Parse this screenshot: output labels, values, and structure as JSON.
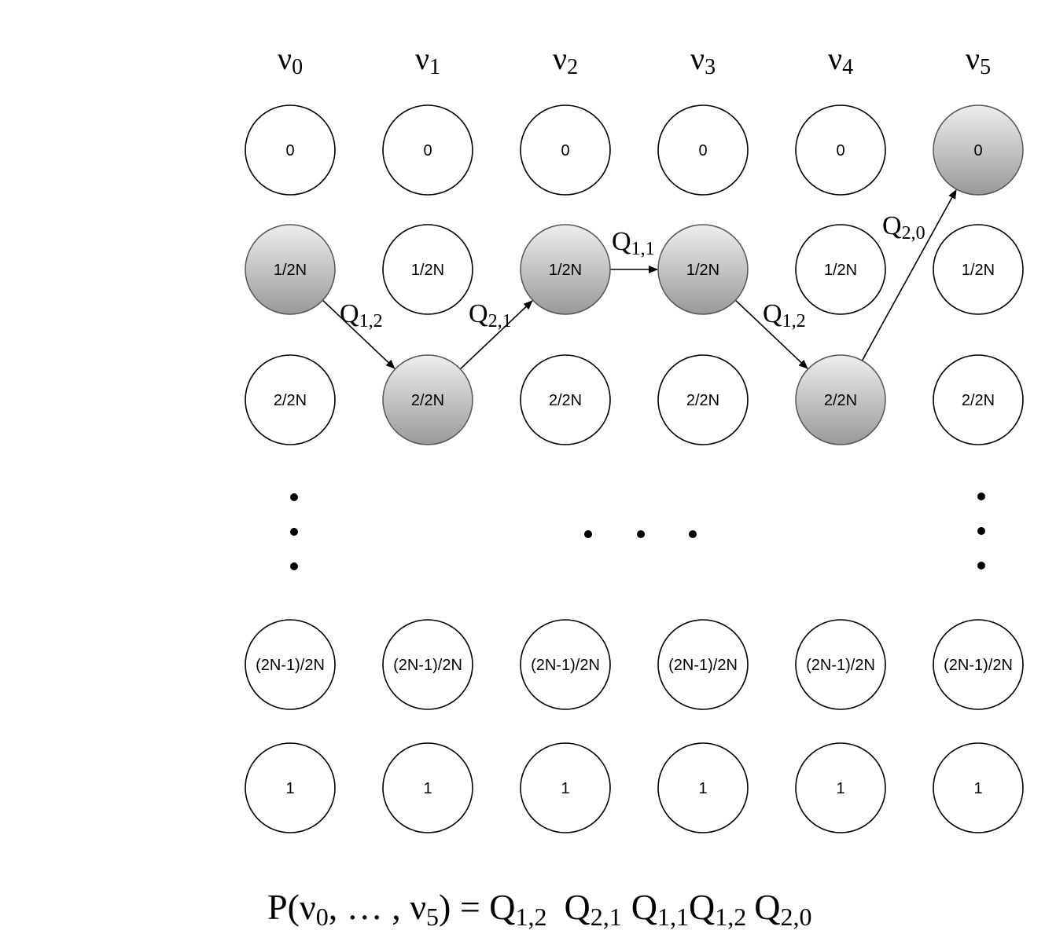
{
  "columns": [
    {
      "base": "ν",
      "sub": "0"
    },
    {
      "base": "ν",
      "sub": "1"
    },
    {
      "base": "ν",
      "sub": "2"
    },
    {
      "base": "ν",
      "sub": "3"
    },
    {
      "base": "ν",
      "sub": "4"
    },
    {
      "base": "ν",
      "sub": "5"
    }
  ],
  "rows_upper": [
    "0",
    "1/2N",
    "2/2N"
  ],
  "rows_lower": [
    "(2N-1)/2N",
    "1"
  ],
  "path_states": [
    1,
    2,
    1,
    1,
    2,
    0
  ],
  "transitions": [
    {
      "base": "Q",
      "sub": "1,2"
    },
    {
      "base": "Q",
      "sub": "2,1"
    },
    {
      "base": "Q",
      "sub": "1,1"
    },
    {
      "base": "Q",
      "sub": "1,2"
    },
    {
      "base": "Q",
      "sub": "2,0"
    }
  ],
  "formula": {
    "lhs_prefix": "P(",
    "lhs_var": "ν",
    "lhs_sub_start": "0",
    "lhs_mid": ", … , ",
    "lhs_sub_end": "5",
    "lhs_suffix": ") = ",
    "terms": [
      {
        "base": "Q",
        "sub": "1,2"
      },
      {
        "base": "Q",
        "sub": "2,1"
      },
      {
        "base": "Q",
        "sub": "1,1"
      },
      {
        "base": "Q",
        "sub": "1,2"
      },
      {
        "base": "Q",
        "sub": "2,0"
      }
    ]
  },
  "colors": {
    "node_fill": "#ffffff",
    "node_stroke": "#000000",
    "path_fill_top": "#eeeeee",
    "path_fill_bottom": "#999999",
    "path_stroke": "#555555"
  }
}
